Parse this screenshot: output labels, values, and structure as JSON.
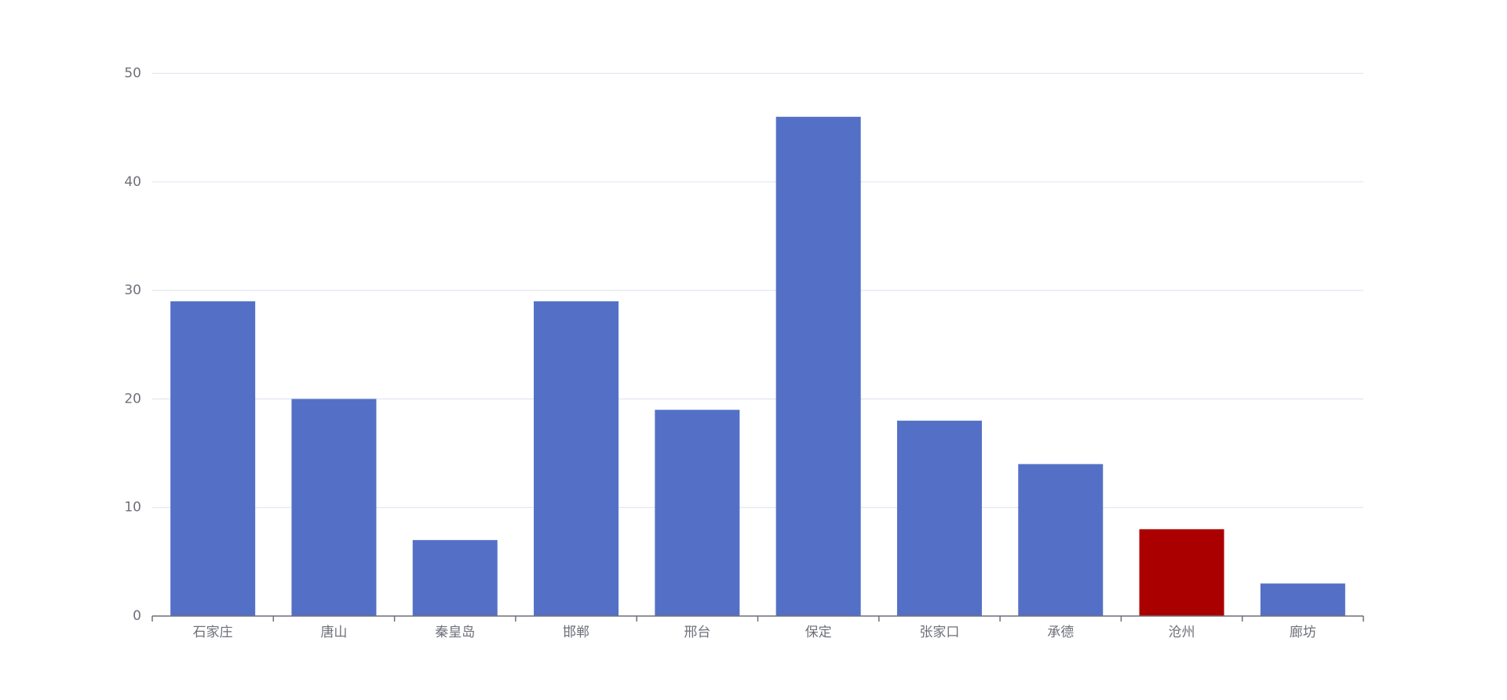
{
  "chart_data": {
    "type": "bar",
    "categories": [
      "石家庄",
      "唐山",
      "秦皇岛",
      "邯郸",
      "邢台",
      "保定",
      "张家口",
      "承德",
      "沧州",
      "廊坊"
    ],
    "values": [
      29,
      20,
      7,
      29,
      19,
      46,
      18,
      14,
      8,
      3
    ],
    "colors": [
      "#5470c6",
      "#5470c6",
      "#5470c6",
      "#5470c6",
      "#5470c6",
      "#5470c6",
      "#5470c6",
      "#5470c6",
      "#aa0000",
      "#5470c6"
    ],
    "ylim": [
      0,
      50
    ],
    "yticks": [
      0,
      10,
      20,
      30,
      40,
      50
    ],
    "grid": true
  }
}
